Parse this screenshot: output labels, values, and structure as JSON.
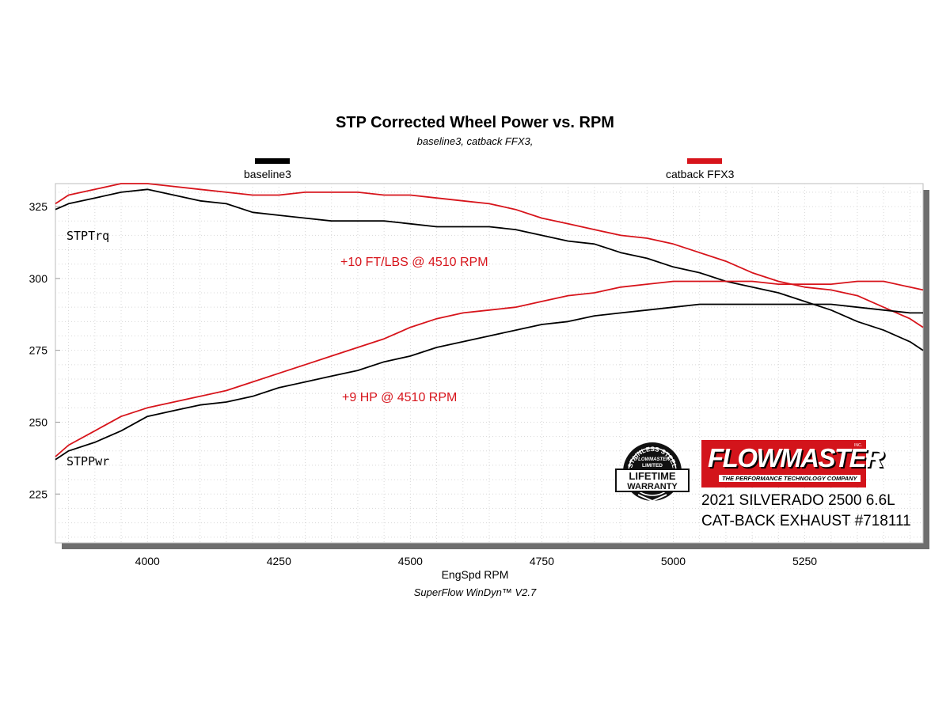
{
  "header": {
    "title": "STP Corrected Wheel Power vs. RPM",
    "subtitle": "baseline3, catback FFX3,"
  },
  "legend": [
    {
      "label": "baseline3",
      "color": "#000000"
    },
    {
      "label": "catback FFX3",
      "color": "#d7141b"
    }
  ],
  "axes": {
    "xlabel": "EngSpd  RPM",
    "x_ticks": [
      "4000",
      "4250",
      "4500",
      "4750",
      "5000",
      "5250"
    ],
    "y_ticks": [
      "325",
      "300",
      "275",
      "250",
      "225"
    ]
  },
  "footer": "SuperFlow WinDyn™  V2.7",
  "annotations": {
    "torque_gain": "+10 FT/LBS @ 4510 RPM",
    "hp_gain": "+9 HP @ 4510 RPM",
    "torque_series_label": "STPTrq",
    "power_series_label": "STPPwr"
  },
  "product": {
    "brand": "FLOWMASTER",
    "tagline": "THE PERFORMANCE TECHNOLOGY COMPANY",
    "brand_suffix": "INC.",
    "warranty_line1": "LIFETIME",
    "warranty_line2": "WARRANTY",
    "warranty_arc": "STAINLESS STEEL",
    "warranty_brand": "FLOWMASTER",
    "warranty_limited": "LIMITED",
    "vehicle": "2021 SILVERADO 2500 6.6L",
    "part": "CAT-BACK EXHAUST #718111"
  },
  "chart_data": {
    "type": "line",
    "title": "STP Corrected Wheel Power vs. RPM",
    "subtitle": "baseline3, catback FFX3,",
    "xlabel": "EngSpd  RPM",
    "ylabel": "",
    "xlim": [
      3825,
      5475
    ],
    "ylim": [
      208,
      333
    ],
    "grid": true,
    "legend_position": "top",
    "series": [
      {
        "name": "baseline3",
        "measure": "STPTrq",
        "color": "#000000",
        "x": [
          3825,
          3850,
          3900,
          3950,
          4000,
          4050,
          4100,
          4150,
          4200,
          4250,
          4300,
          4350,
          4400,
          4450,
          4500,
          4550,
          4600,
          4650,
          4700,
          4750,
          4800,
          4850,
          4900,
          4950,
          5000,
          5050,
          5100,
          5150,
          5200,
          5250,
          5300,
          5350,
          5400,
          5450,
          5475
        ],
        "y": [
          324,
          326,
          328,
          330,
          331,
          329,
          327,
          326,
          323,
          322,
          321,
          320,
          320,
          320,
          319,
          318,
          318,
          318,
          317,
          315,
          313,
          312,
          309,
          307,
          304,
          302,
          299,
          297,
          295,
          292,
          289,
          285,
          282,
          278,
          275
        ]
      },
      {
        "name": "catback FFX3",
        "measure": "STPTrq",
        "color": "#d7141b",
        "x": [
          3825,
          3850,
          3900,
          3950,
          4000,
          4050,
          4100,
          4150,
          4200,
          4250,
          4300,
          4350,
          4400,
          4450,
          4500,
          4550,
          4600,
          4650,
          4700,
          4750,
          4800,
          4850,
          4900,
          4950,
          5000,
          5050,
          5100,
          5150,
          5200,
          5250,
          5300,
          5350,
          5400,
          5450,
          5475
        ],
        "y": [
          326,
          329,
          331,
          333,
          333,
          332,
          331,
          330,
          329,
          329,
          330,
          330,
          330,
          329,
          329,
          328,
          327,
          326,
          324,
          321,
          319,
          317,
          315,
          314,
          312,
          309,
          306,
          302,
          299,
          297,
          296,
          294,
          290,
          286,
          283
        ]
      },
      {
        "name": "baseline3",
        "measure": "STPPwr",
        "color": "#000000",
        "x": [
          3825,
          3850,
          3900,
          3950,
          4000,
          4050,
          4100,
          4150,
          4200,
          4250,
          4300,
          4350,
          4400,
          4450,
          4500,
          4550,
          4600,
          4650,
          4700,
          4750,
          4800,
          4850,
          4900,
          4950,
          5000,
          5050,
          5100,
          5150,
          5200,
          5250,
          5300,
          5350,
          5400,
          5450,
          5475
        ],
        "y": [
          237,
          240,
          243,
          247,
          252,
          254,
          256,
          257,
          259,
          262,
          264,
          266,
          268,
          271,
          273,
          276,
          278,
          280,
          282,
          284,
          285,
          287,
          288,
          289,
          290,
          291,
          291,
          291,
          291,
          291,
          291,
          290,
          289,
          288,
          288
        ]
      },
      {
        "name": "catback FFX3",
        "measure": "STPPwr",
        "color": "#d7141b",
        "x": [
          3825,
          3850,
          3900,
          3950,
          4000,
          4050,
          4100,
          4150,
          4200,
          4250,
          4300,
          4350,
          4400,
          4450,
          4500,
          4550,
          4600,
          4650,
          4700,
          4750,
          4800,
          4850,
          4900,
          4950,
          5000,
          5050,
          5100,
          5150,
          5200,
          5250,
          5300,
          5350,
          5400,
          5450,
          5475
        ],
        "y": [
          238,
          242,
          247,
          252,
          255,
          257,
          259,
          261,
          264,
          267,
          270,
          273,
          276,
          279,
          283,
          286,
          288,
          289,
          290,
          292,
          294,
          295,
          297,
          298,
          299,
          299,
          299,
          299,
          298,
          298,
          298,
          299,
          299,
          297,
          296
        ]
      }
    ]
  }
}
